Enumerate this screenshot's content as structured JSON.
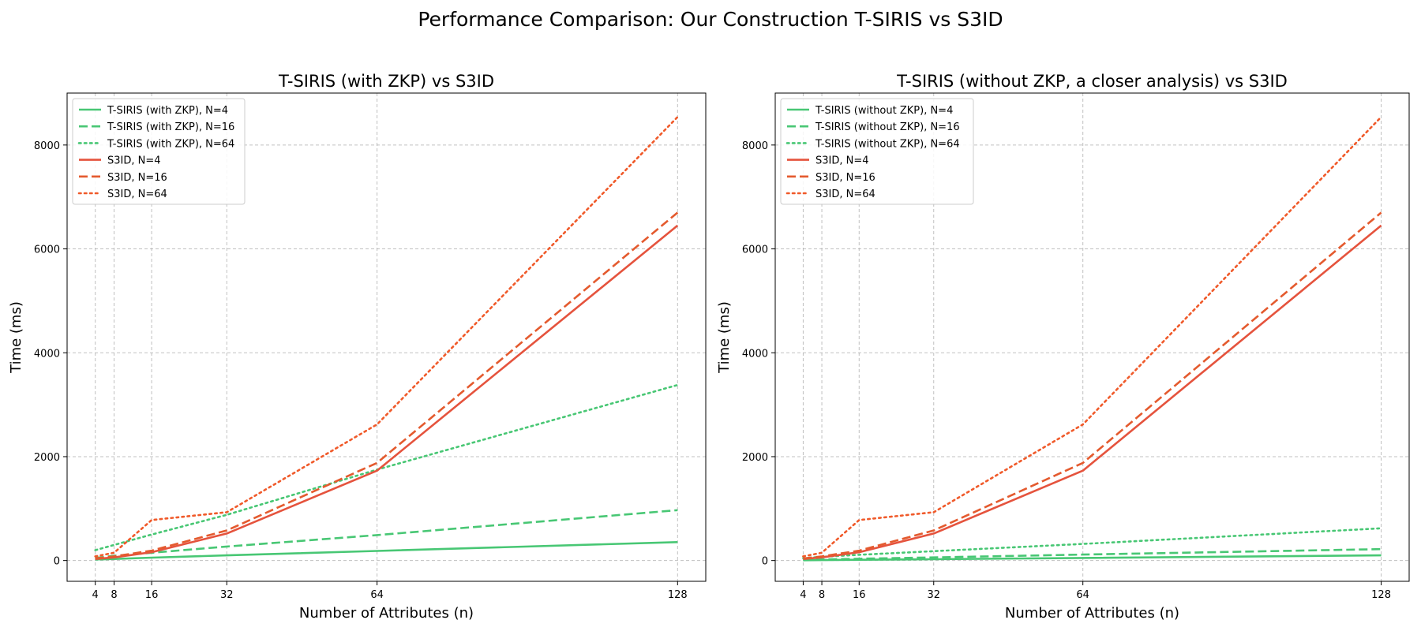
{
  "figure_title": "Performance Comparison: Our Construction T-SIRIS vs S3ID",
  "colors": {
    "tsiris": "#48c774",
    "s3id_solid": "#e5533d",
    "s3id_dashed": "#e45a2e",
    "s3id_dotted": "#f05a2a"
  },
  "chart_data": [
    {
      "type": "line",
      "title": "T-SIRIS (with ZKP) vs S3ID",
      "xlabel": "Number of Attributes (n)",
      "ylabel": "Time (ms)",
      "x": [
        4,
        8,
        16,
        32,
        64,
        128
      ],
      "xticks": [
        4,
        8,
        16,
        32,
        64,
        128
      ],
      "yticks": [
        0,
        2000,
        4000,
        6000,
        8000
      ],
      "xlim": [
        -2,
        134
      ],
      "ylim": [
        -400,
        9000
      ],
      "grid": true,
      "legend_position": "top-left",
      "series": [
        {
          "name": "T-SIRIS (with ZKP), N=4",
          "style": "solid",
          "color": "#48c774",
          "values": [
            20,
            30,
            55,
            100,
            185,
            355
          ]
        },
        {
          "name": "T-SIRIS (with ZKP), N=16",
          "style": "dashed",
          "color": "#48c774",
          "values": [
            50,
            90,
            150,
            270,
            490,
            970
          ]
        },
        {
          "name": "T-SIRIS (with ZKP), N=64",
          "style": "dotted",
          "color": "#48c774",
          "values": [
            200,
            300,
            500,
            880,
            1750,
            3380
          ]
        },
        {
          "name": "S3ID, N=4",
          "style": "solid",
          "color": "#e5533d",
          "values": [
            30,
            60,
            160,
            520,
            1730,
            6450
          ]
        },
        {
          "name": "S3ID, N=16",
          "style": "dashed",
          "color": "#e45a2e",
          "values": [
            40,
            80,
            190,
            580,
            1880,
            6700
          ]
        },
        {
          "name": "S3ID, N=64",
          "style": "dotted",
          "color": "#f05a2a",
          "values": [
            80,
            150,
            780,
            930,
            2620,
            8540
          ]
        }
      ]
    },
    {
      "type": "line",
      "title": "T-SIRIS (without ZKP, a closer analysis) vs S3ID",
      "xlabel": "Number of Attributes (n)",
      "ylabel": "Time (ms)",
      "x": [
        4,
        8,
        16,
        32,
        64,
        128
      ],
      "xticks": [
        4,
        8,
        16,
        32,
        64,
        128
      ],
      "yticks": [
        0,
        2000,
        4000,
        6000,
        8000
      ],
      "xlim": [
        -2,
        134
      ],
      "ylim": [
        -400,
        9000
      ],
      "grid": true,
      "legend_position": "top-left",
      "series": [
        {
          "name": "T-SIRIS (without ZKP), N=4",
          "style": "solid",
          "color": "#48c774",
          "values": [
            5,
            8,
            15,
            25,
            50,
            100
          ]
        },
        {
          "name": "T-SIRIS (without ZKP), N=16",
          "style": "dashed",
          "color": "#48c774",
          "values": [
            12,
            20,
            35,
            60,
            115,
            220
          ]
        },
        {
          "name": "T-SIRIS (without ZKP), N=64",
          "style": "dotted",
          "color": "#48c774",
          "values": [
            45,
            70,
            110,
            180,
            320,
            620
          ]
        },
        {
          "name": "S3ID, N=4",
          "style": "solid",
          "color": "#e5533d",
          "values": [
            30,
            60,
            160,
            520,
            1730,
            6450
          ]
        },
        {
          "name": "S3ID, N=16",
          "style": "dashed",
          "color": "#e45a2e",
          "values": [
            40,
            80,
            190,
            580,
            1880,
            6700
          ]
        },
        {
          "name": "S3ID, N=64",
          "style": "dotted",
          "color": "#f05a2a",
          "values": [
            80,
            150,
            780,
            930,
            2620,
            8540
          ]
        }
      ]
    }
  ]
}
